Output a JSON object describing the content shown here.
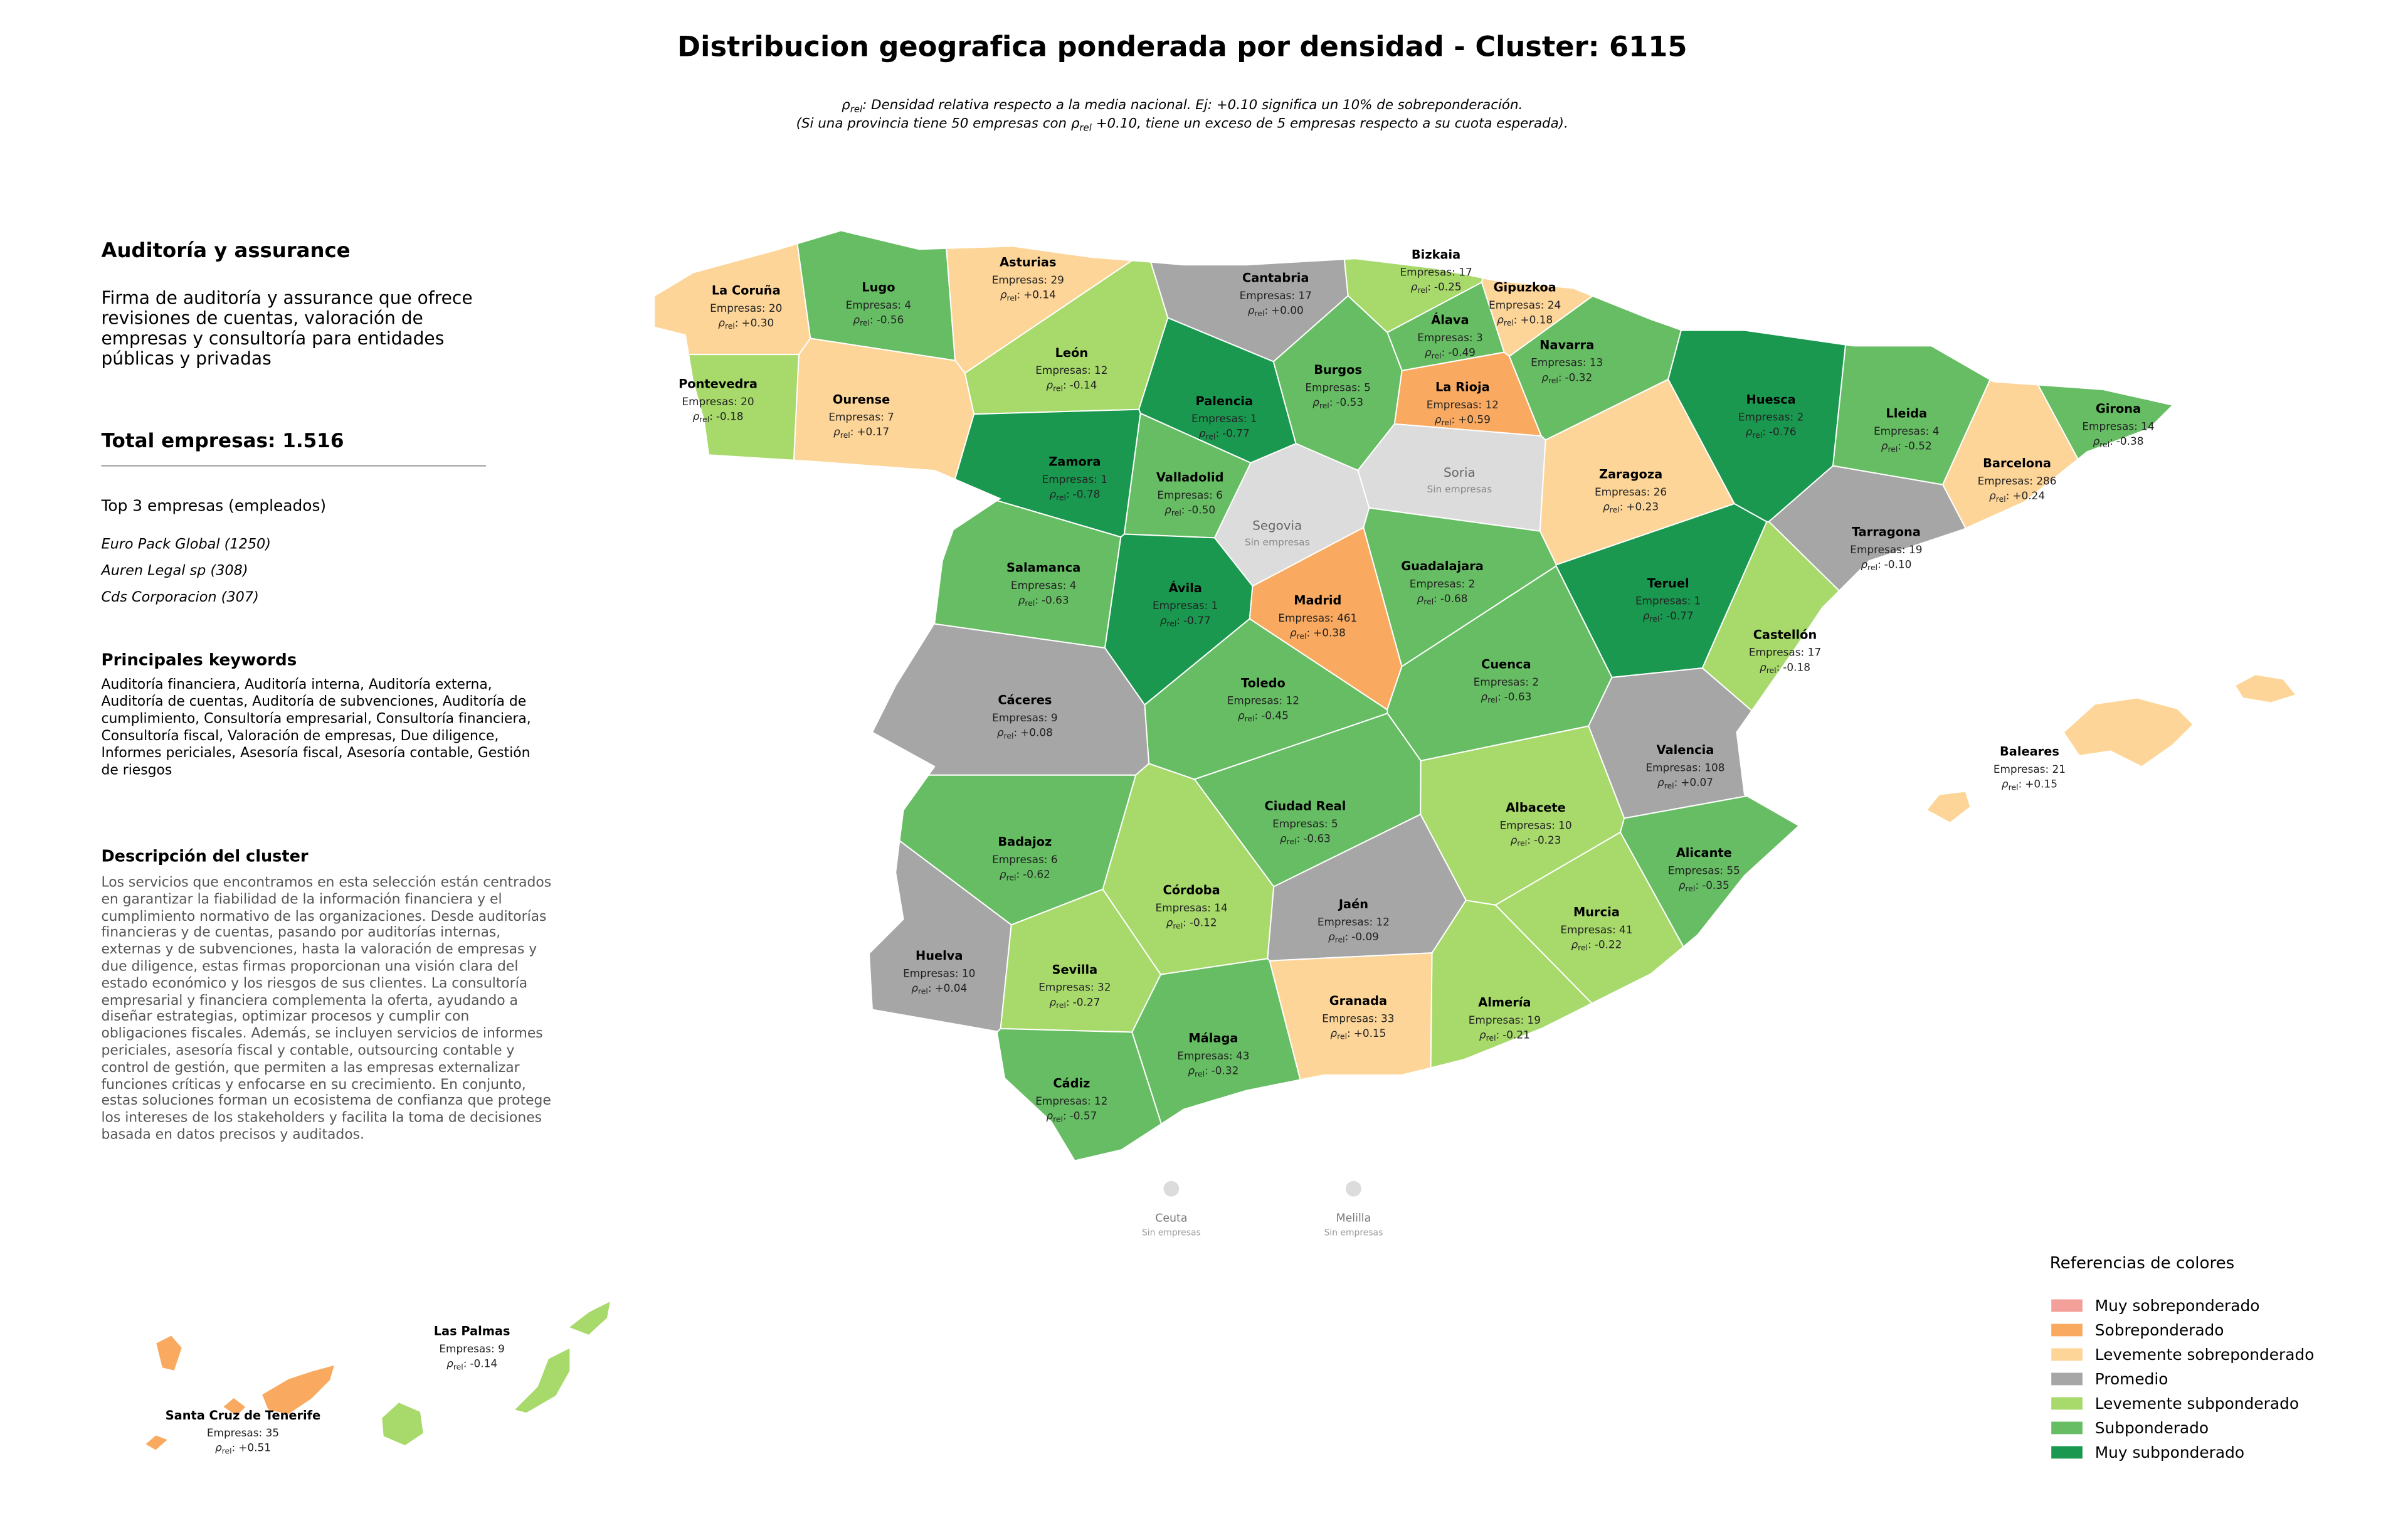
{
  "header": {
    "title": "Distribucion geografica ponderada por densidad - Cluster: 6115",
    "subtitle": [
      {
        "before": "ρ",
        "sub": "rel",
        "after": ": Densidad relativa respecto a la media nacional. Ej: +0.10 significa un 10% de sobreponderación."
      },
      {
        "before": "(Si una provincia tiene 50 empresas con ρ",
        "sub": "rel",
        "after": " +0.10, tiene un exceso de 5 empresas respecto a su cuota esperada)."
      }
    ]
  },
  "panel": {
    "title": "Auditoría y assurance",
    "description": "Firma de auditoría y assurance que ofrece revisiones de cuentas, valoración de empresas y consultoría para entidades públicas y privadas",
    "total": "Total empresas: 1.516",
    "top_title": "Top 3 empresas (empleados)",
    "top": [
      "Euro Pack Global (1250)",
      "Auren Legal sp (308)",
      "Cds Corporacion (307)"
    ],
    "keywords_title": "Principales keywords",
    "keywords": "Auditoría financiera, Auditoría interna, Auditoría externa, Auditoría de cuentas, Auditoría de subvenciones, Auditoría de cumplimiento, Consultoría empresarial, Consultoría financiera, Consultoría fiscal, Valoración de empresas, Due diligence, Informes periciales, Asesoría fiscal, Asesoría contable, Gestión de riesgos",
    "cluster_title": "Descripción del cluster",
    "cluster_text": "Los servicios que encontramos en esta selección están centrados en garantizar la fiabilidad de la información financiera y el cumplimiento normativo de las organizaciones. Desde auditorías financieras y de cuentas, pasando por auditorías internas, externas y de subvenciones, hasta la valoración de empresas y due diligence, estas firmas proporcionan una visión clara del estado económico y los riesgos de sus clientes. La consultoría empresarial y financiera complementa la oferta, ayudando a diseñar estrategias, optimizar procesos y cumplir con obligaciones fiscales. Además, se incluyen servicios de informes periciales, asesoría fiscal y contable, outsourcing contable y control de gestión, que permiten a las empresas externalizar funciones críticas y enfocarse en su crecimiento. En conjunto, estas soluciones forman un ecosistema de confianza que protege los intereses de los stakeholders y facilita la toma de decisiones basada en datos precisos y auditados."
  },
  "map": {
    "rho_label": {
      "symbol": "ρ",
      "sub": "rel",
      "after": ":"
    },
    "nodata_color": "#dcdcdc",
    "provinces": [
      {
        "name": "La Coruña",
        "empresas": "Empresas: 20",
        "rho": "+0.30",
        "level": 2
      },
      {
        "name": "Lugo",
        "empresas": "Empresas: 4",
        "rho": "-0.56",
        "level": 5
      },
      {
        "name": "Asturias",
        "empresas": "Empresas: 29",
        "rho": "+0.14",
        "level": 2
      },
      {
        "name": "Cantabria",
        "empresas": "Empresas: 17",
        "rho": "+0.00",
        "level": 3
      },
      {
        "name": "Bizkaia",
        "empresas": "Empresas: 17",
        "rho": "-0.25",
        "level": 4
      },
      {
        "name": "Gipuzkoa",
        "empresas": "Empresas: 24",
        "rho": "+0.18",
        "level": 2
      },
      {
        "name": "Álava",
        "empresas": "Empresas: 3",
        "rho": "-0.49",
        "level": 5
      },
      {
        "name": "Navarra",
        "empresas": "Empresas: 13",
        "rho": "-0.32",
        "level": 5
      },
      {
        "name": "Pontevedra",
        "empresas": "Empresas: 20",
        "rho": "-0.18",
        "level": 4
      },
      {
        "name": "Ourense",
        "empresas": "Empresas: 7",
        "rho": "+0.17",
        "level": 2
      },
      {
        "name": "León",
        "empresas": "Empresas: 12",
        "rho": "-0.14",
        "level": 4
      },
      {
        "name": "Palencia",
        "empresas": "Empresas: 1",
        "rho": "-0.77",
        "level": 6
      },
      {
        "name": "Burgos",
        "empresas": "Empresas: 5",
        "rho": "-0.53",
        "level": 5
      },
      {
        "name": "La Rioja",
        "empresas": "Empresas: 12",
        "rho": "+0.59",
        "level": 1
      },
      {
        "name": "Huesca",
        "empresas": "Empresas: 2",
        "rho": "-0.76",
        "level": 6
      },
      {
        "name": "Lleida",
        "empresas": "Empresas: 4",
        "rho": "-0.52",
        "level": 5
      },
      {
        "name": "Girona",
        "empresas": "Empresas: 14",
        "rho": "-0.38",
        "level": 5
      },
      {
        "name": "Soria",
        "note": "Sin empresas"
      },
      {
        "name": "Zamora",
        "empresas": "Empresas: 1",
        "rho": "-0.78",
        "level": 6
      },
      {
        "name": "Valladolid",
        "empresas": "Empresas: 6",
        "rho": "-0.50",
        "level": 5
      },
      {
        "name": "Zaragoza",
        "empresas": "Empresas: 26",
        "rho": "+0.23",
        "level": 2
      },
      {
        "name": "Barcelona",
        "empresas": "Empresas: 286",
        "rho": "+0.24",
        "level": 2
      },
      {
        "name": "Segovia",
        "note": "Sin empresas"
      },
      {
        "name": "Tarragona",
        "empresas": "Empresas: 19",
        "rho": "-0.10",
        "level": 3
      },
      {
        "name": "Salamanca",
        "empresas": "Empresas: 4",
        "rho": "-0.63",
        "level": 5
      },
      {
        "name": "Guadalajara",
        "empresas": "Empresas: 2",
        "rho": "-0.68",
        "level": 5
      },
      {
        "name": "Ávila",
        "empresas": "Empresas: 1",
        "rho": "-0.77",
        "level": 6
      },
      {
        "name": "Madrid",
        "empresas": "Empresas: 461",
        "rho": "+0.38",
        "level": 1
      },
      {
        "name": "Teruel",
        "empresas": "Empresas: 1",
        "rho": "-0.77",
        "level": 6
      },
      {
        "name": "Castellón",
        "empresas": "Empresas: 17",
        "rho": "-0.18",
        "level": 4
      },
      {
        "name": "Cuenca",
        "empresas": "Empresas: 2",
        "rho": "-0.63",
        "level": 5
      },
      {
        "name": "Toledo",
        "empresas": "Empresas: 12",
        "rho": "-0.45",
        "level": 5
      },
      {
        "name": "Cáceres",
        "empresas": "Empresas: 9",
        "rho": "+0.08",
        "level": 3
      },
      {
        "name": "Valencia",
        "empresas": "Empresas: 108",
        "rho": "+0.07",
        "level": 3
      },
      {
        "name": "Baleares",
        "empresas": "Empresas: 21",
        "rho": "+0.15",
        "level": 2
      },
      {
        "name": "Ciudad Real",
        "empresas": "Empresas: 5",
        "rho": "-0.63",
        "level": 5
      },
      {
        "name": "Albacete",
        "empresas": "Empresas: 10",
        "rho": "-0.23",
        "level": 4
      },
      {
        "name": "Badajoz",
        "empresas": "Empresas: 6",
        "rho": "-0.62",
        "level": 5
      },
      {
        "name": "Alicante",
        "empresas": "Empresas: 55",
        "rho": "-0.35",
        "level": 5
      },
      {
        "name": "Córdoba",
        "empresas": "Empresas: 14",
        "rho": "-0.12",
        "level": 4
      },
      {
        "name": "Jaén",
        "empresas": "Empresas: 12",
        "rho": "-0.09",
        "level": 3
      },
      {
        "name": "Murcia",
        "empresas": "Empresas: 41",
        "rho": "-0.22",
        "level": 4
      },
      {
        "name": "Huelva",
        "empresas": "Empresas: 10",
        "rho": "+0.04",
        "level": 3
      },
      {
        "name": "Sevilla",
        "empresas": "Empresas: 32",
        "rho": "-0.27",
        "level": 4
      },
      {
        "name": "Granada",
        "empresas": "Empresas: 33",
        "rho": "+0.15",
        "level": 2
      },
      {
        "name": "Almería",
        "empresas": "Empresas: 19",
        "rho": "-0.21",
        "level": 4
      },
      {
        "name": "Málaga",
        "empresas": "Empresas: 43",
        "rho": "-0.32",
        "level": 5
      },
      {
        "name": "Cádiz",
        "empresas": "Empresas: 12",
        "rho": "-0.57",
        "level": 5
      },
      {
        "name": "Las Palmas",
        "empresas": "Empresas: 9",
        "rho": "-0.14",
        "level": 4
      },
      {
        "name": "Santa Cruz de Tenerife",
        "empresas": "Empresas: 35",
        "rho": "+0.51",
        "level": 1
      }
    ],
    "cities": [
      {
        "name": "Ceuta",
        "note": "Sin empresas"
      },
      {
        "name": "Melilla",
        "note": "Sin empresas"
      }
    ]
  },
  "legend": {
    "title": "Referencias de colores",
    "items": [
      {
        "label": "Muy sobreponderado",
        "color": "#f4a09a"
      },
      {
        "label": "Sobreponderado",
        "color": "#f9aa60"
      },
      {
        "label": "Levemente sobreponderado",
        "color": "#fdd598"
      },
      {
        "label": "Promedio",
        "color": "#a6a6a6"
      },
      {
        "label": "Levemente subponderado",
        "color": "#a7d96b"
      },
      {
        "label": "Subponderado",
        "color": "#66bd63"
      },
      {
        "label": "Muy subponderado",
        "color": "#1a9850"
      }
    ]
  }
}
